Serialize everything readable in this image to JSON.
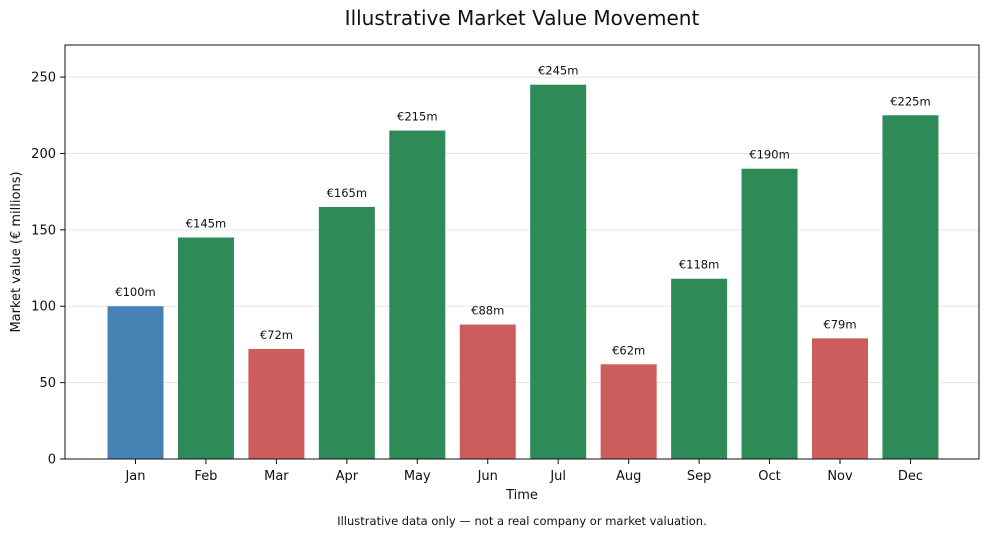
{
  "chart_data": {
    "type": "bar",
    "title": "Illustrative Market Value Movement",
    "xlabel": "Time",
    "ylabel": "Market value (€ millions)",
    "categories": [
      "Jan",
      "Feb",
      "Mar",
      "Apr",
      "May",
      "Jun",
      "Jul",
      "Aug",
      "Sep",
      "Oct",
      "Nov",
      "Dec"
    ],
    "values": [
      100,
      145,
      72,
      165,
      215,
      88,
      245,
      62,
      118,
      190,
      79,
      225
    ],
    "data_labels": [
      "€100m",
      "€145m",
      "€72m",
      "€165m",
      "€215m",
      "€88m",
      "€245m",
      "€62m",
      "€118m",
      "€190m",
      "€79m",
      "€225m"
    ],
    "bar_colors": [
      "#4682b4",
      "#2e8b57",
      "#cd5c5c",
      "#2e8b57",
      "#2e8b57",
      "#cd5c5c",
      "#2e8b57",
      "#cd5c5c",
      "#2e8b57",
      "#2e8b57",
      "#cd5c5c",
      "#2e8b57"
    ],
    "ylim": [
      0,
      271
    ],
    "yticks": [
      0,
      50,
      100,
      150,
      200,
      250
    ],
    "grid": "horizontal, light",
    "legend": "none"
  },
  "footnote": "Illustrative data only — not a real company or market valuation."
}
